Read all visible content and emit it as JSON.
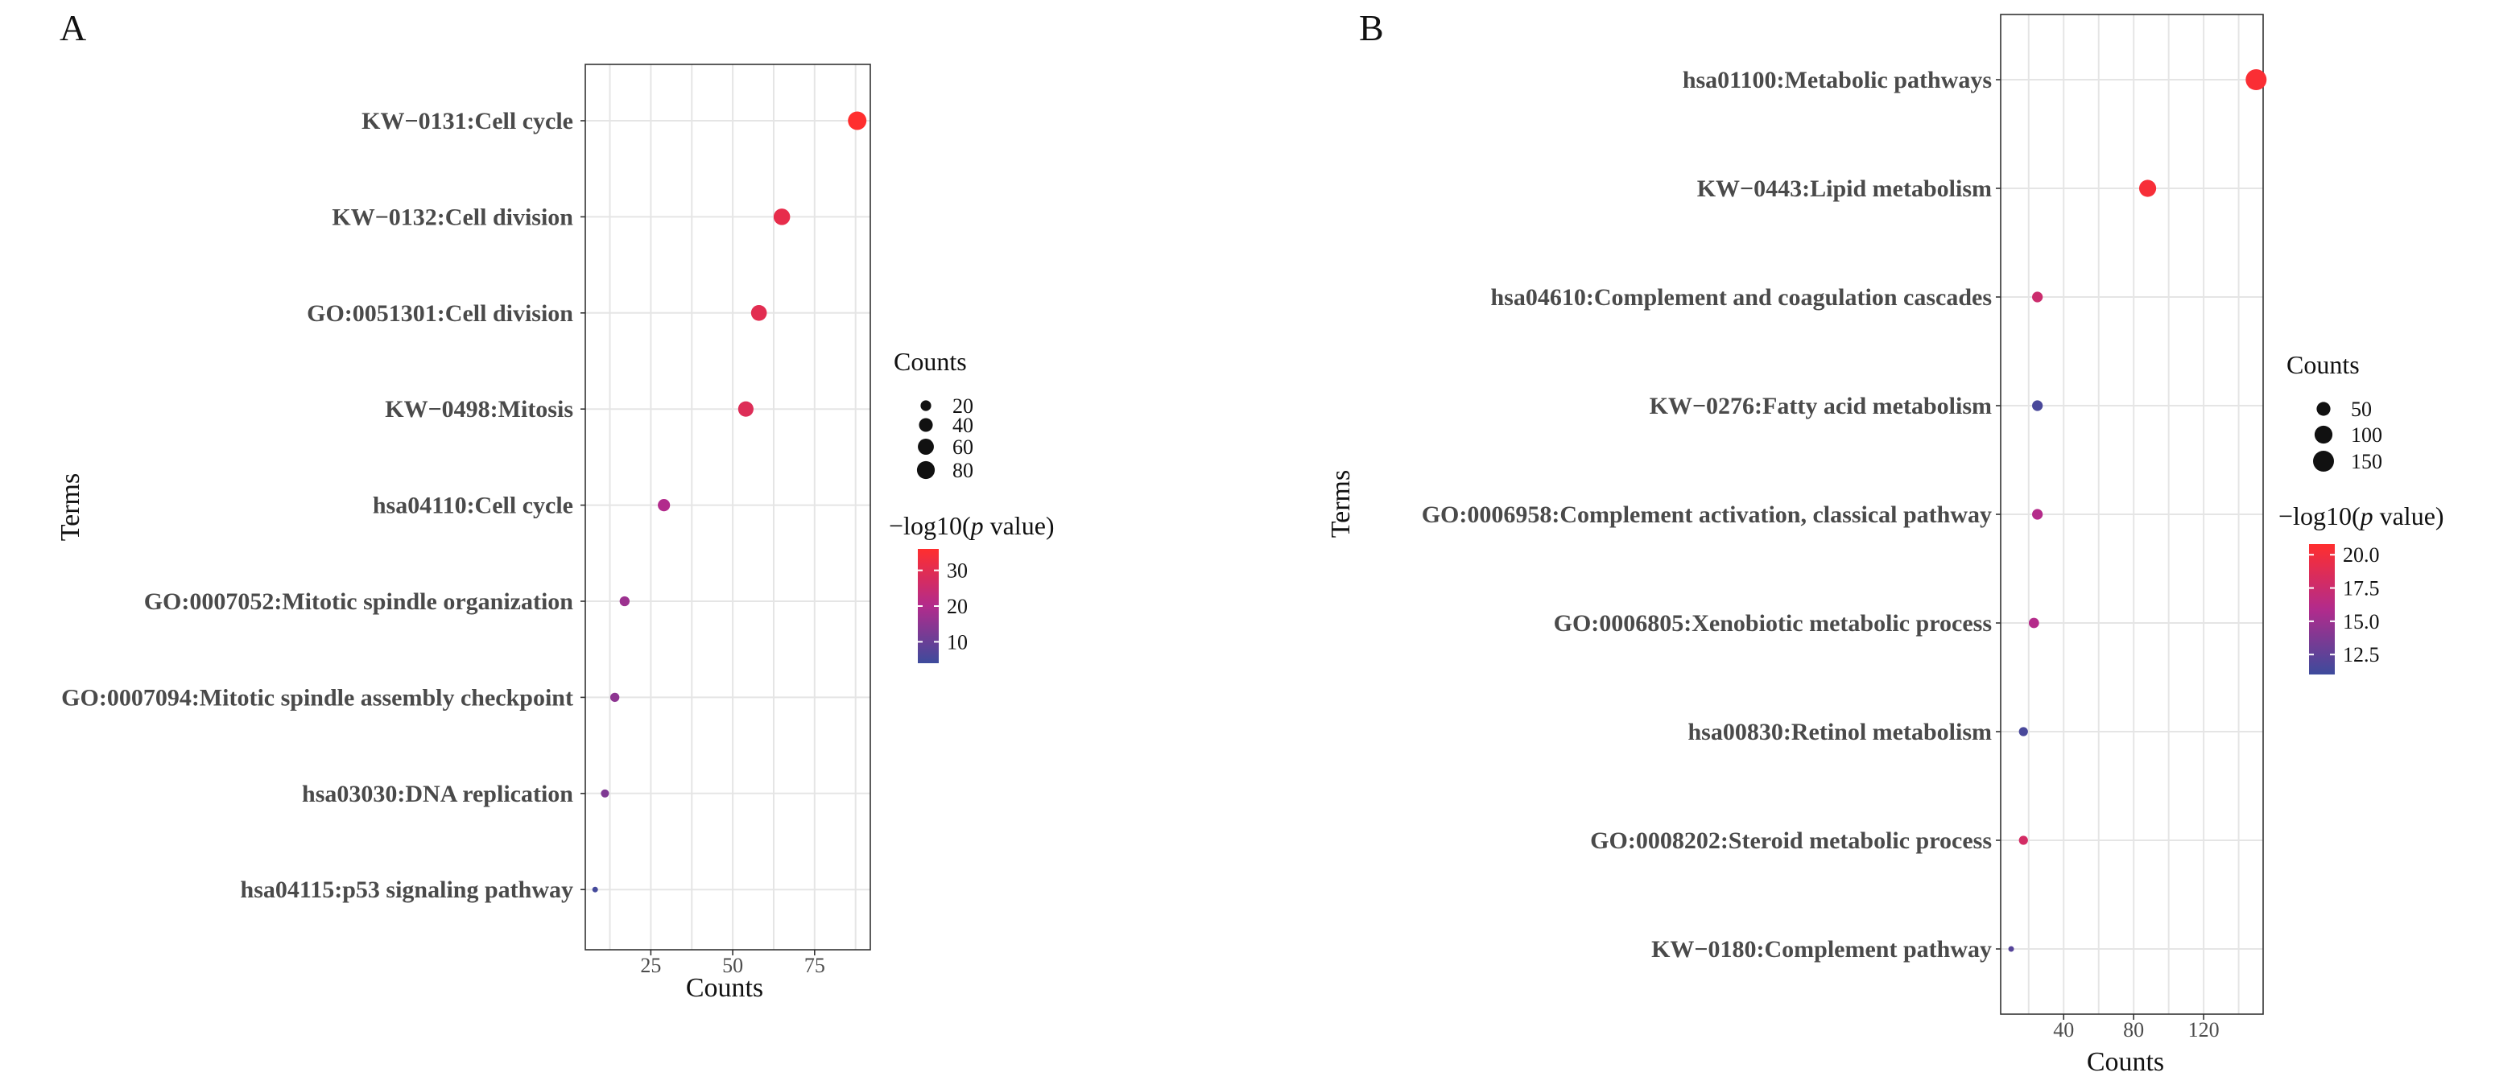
{
  "chart_data": [
    {
      "type": "scatter",
      "panel": "A",
      "xlabel": "Counts",
      "ylabel": "Terms",
      "xlim": [
        5,
        92
      ],
      "xticks": [
        25,
        50,
        75
      ],
      "size_legend": {
        "title": "Counts",
        "values": [
          20,
          40,
          60,
          80
        ]
      },
      "color_legend": {
        "title_prefix": "−log10(",
        "title_italic": "p",
        "title_suffix": " value)",
        "ticks": [
          10,
          20,
          30
        ],
        "range": [
          4,
          36
        ]
      },
      "points": [
        {
          "term": "KW−0131:Cell cycle",
          "count": 88,
          "neglog10p": 36
        },
        {
          "term": "KW−0132:Cell division",
          "count": 65,
          "neglog10p": 31
        },
        {
          "term": "GO:0051301:Cell division",
          "count": 58,
          "neglog10p": 30
        },
        {
          "term": "KW−0498:Mitosis",
          "count": 54,
          "neglog10p": 29
        },
        {
          "term": "hsa04110:Cell cycle",
          "count": 29,
          "neglog10p": 20
        },
        {
          "term": "GO:0007052:Mitotic spindle organization",
          "count": 17,
          "neglog10p": 17
        },
        {
          "term": "GO:0007094:Mitotic spindle assembly checkpoint",
          "count": 14,
          "neglog10p": 15
        },
        {
          "term": "hsa03030:DNA replication",
          "count": 11,
          "neglog10p": 13
        },
        {
          "term": "hsa04115:p53 signaling pathway",
          "count": 8,
          "neglog10p": 5
        }
      ]
    },
    {
      "type": "scatter",
      "panel": "B",
      "xlabel": "Counts",
      "ylabel": "Terms",
      "xlim": [
        4,
        154
      ],
      "xticks": [
        40,
        80,
        120
      ],
      "size_legend": {
        "title": "Counts",
        "values": [
          50,
          100,
          150
        ]
      },
      "color_legend": {
        "title_prefix": "−log10(",
        "title_italic": "p",
        "title_suffix": " value)",
        "ticks": [
          "12.5",
          "15.0",
          "17.5",
          "20.0"
        ],
        "range": [
          11,
          20.8
        ]
      },
      "points": [
        {
          "term": "hsa01100:Metabolic pathways",
          "count": 150,
          "neglog10p": 20.5
        },
        {
          "term": "KW−0443:Lipid metabolism",
          "count": 88,
          "neglog10p": 20.3
        },
        {
          "term": "hsa04610:Complement and coagulation cascades",
          "count": 25,
          "neglog10p": 17.5
        },
        {
          "term": "KW−0276:Fatty acid metabolism",
          "count": 25,
          "neglog10p": 11.5
        },
        {
          "term": "GO:0006958:Complement activation, classical pathway",
          "count": 25,
          "neglog10p": 16
        },
        {
          "term": "GO:0006805:Xenobiotic metabolic process",
          "count": 23,
          "neglog10p": 16
        },
        {
          "term": "hsa00830:Retinol metabolism",
          "count": 17,
          "neglog10p": 11.5
        },
        {
          "term": "GO:0008202:Steroid metabolic process",
          "count": 17,
          "neglog10p": 18
        },
        {
          "term": "KW−0180:Complement pathway",
          "count": 10,
          "neglog10p": 12
        }
      ]
    }
  ]
}
